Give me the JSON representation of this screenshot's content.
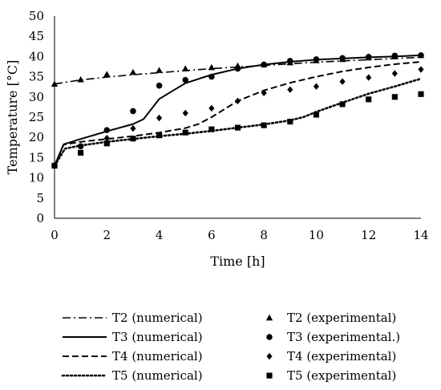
{
  "chart_data": {
    "type": "line",
    "xlabel": "Time [h]",
    "ylabel": "Temperature [°C]",
    "xlim": [
      0,
      14
    ],
    "ylim": [
      0,
      50
    ],
    "xticks": [
      0,
      2,
      4,
      6,
      8,
      10,
      12,
      14
    ],
    "yticks": [
      0,
      5,
      10,
      15,
      20,
      25,
      30,
      35,
      40,
      45,
      50
    ],
    "grid": false,
    "legend_position": "bottom",
    "series": [
      {
        "name": "T2 (numerical)",
        "kind": "line",
        "style": "dashdot",
        "x": [
          0,
          1,
          2,
          3,
          4,
          5,
          6,
          7,
          8,
          9,
          10,
          11,
          12,
          13,
          14
        ],
        "y": [
          33.2,
          34.2,
          34.9,
          35.5,
          36.0,
          36.5,
          37.0,
          37.4,
          37.8,
          38.2,
          38.6,
          38.9,
          39.2,
          39.5,
          39.8
        ]
      },
      {
        "name": "T3 (numerical)",
        "kind": "line",
        "style": "solid",
        "x": [
          0,
          0.35,
          1,
          2,
          3,
          3.4,
          4,
          5,
          6,
          7,
          8,
          9,
          10,
          11,
          12,
          13,
          14
        ],
        "y": [
          13.0,
          18.3,
          19.6,
          21.5,
          23.3,
          24.5,
          29.5,
          33.4,
          35.5,
          37.0,
          38.0,
          38.7,
          39.2,
          39.5,
          39.8,
          40.0,
          40.3
        ]
      },
      {
        "name": "T4 (numerical)",
        "kind": "line",
        "style": "dashed",
        "x": [
          0,
          0.35,
          1,
          2,
          3,
          4,
          5,
          5.5,
          6,
          6.5,
          7,
          8,
          9,
          10,
          11,
          12,
          13,
          14
        ],
        "y": [
          13.0,
          18.2,
          18.9,
          19.6,
          20.3,
          21.2,
          22.3,
          23.3,
          25.0,
          27.0,
          29.0,
          31.6,
          33.5,
          35.0,
          36.3,
          37.3,
          38.1,
          38.7
        ]
      },
      {
        "name": "T5 (numerical)",
        "kind": "line",
        "style": "dotted",
        "x": [
          0,
          0.4,
          1,
          2,
          3,
          4,
          5,
          6,
          7,
          8,
          9,
          9.5,
          10,
          11,
          12,
          13,
          14
        ],
        "y": [
          13.0,
          17.2,
          18.0,
          18.9,
          19.6,
          20.3,
          20.9,
          21.6,
          22.4,
          23.2,
          24.2,
          25.0,
          26.3,
          28.6,
          30.8,
          32.6,
          34.5
        ]
      },
      {
        "name": "T2 (experimental)",
        "kind": "marker",
        "marker": "triangle",
        "x": [
          0,
          1,
          2,
          3,
          4,
          5,
          6,
          7,
          8,
          9,
          10,
          11,
          12,
          13,
          14
        ],
        "y": [
          33.2,
          34.3,
          35.6,
          36.1,
          36.6,
          37.0,
          37.3,
          37.7,
          38.0,
          38.5,
          39.0,
          39.3,
          39.7,
          40.0,
          40.3
        ]
      },
      {
        "name": "T3 (experimental.)",
        "kind": "marker",
        "marker": "circle",
        "x": [
          0,
          1,
          2,
          3,
          4,
          5,
          6,
          7,
          8,
          9,
          10,
          11,
          12,
          13,
          14
        ],
        "y": [
          13.0,
          17.8,
          21.8,
          26.5,
          32.8,
          34.2,
          35.0,
          37.0,
          38.0,
          38.9,
          39.3,
          39.6,
          39.9,
          40.2,
          40.3
        ]
      },
      {
        "name": "T4 (experimental)",
        "kind": "marker",
        "marker": "diamond",
        "x": [
          0,
          1,
          2,
          3,
          4,
          5,
          6,
          7,
          8,
          9,
          10,
          11,
          12,
          13,
          14
        ],
        "y": [
          13.0,
          17.8,
          19.8,
          22.2,
          24.8,
          26.0,
          27.2,
          29.0,
          31.0,
          31.8,
          32.6,
          33.8,
          34.8,
          35.8,
          36.8
        ]
      },
      {
        "name": "T5 (experimental)",
        "kind": "marker",
        "marker": "square",
        "x": [
          0,
          1,
          2,
          3,
          4,
          5,
          6,
          7,
          8,
          9,
          10,
          11,
          12,
          13,
          14
        ],
        "y": [
          13.0,
          16.2,
          18.5,
          19.7,
          20.5,
          21.2,
          22.0,
          22.4,
          23.0,
          23.9,
          25.6,
          28.2,
          29.4,
          30.0,
          30.7
        ]
      }
    ],
    "legend": [
      {
        "label": "T2 (numerical)",
        "series": 0
      },
      {
        "label": "T2 (experimental)",
        "series": 4
      },
      {
        "label": "T3 (numerical)",
        "series": 1
      },
      {
        "label": "T3 (experimental.)",
        "series": 5
      },
      {
        "label": "T4 (numerical)",
        "series": 2
      },
      {
        "label": "T4 (experimental)",
        "series": 6
      },
      {
        "label": "T5 (numerical)",
        "series": 3
      },
      {
        "label": "T5 (experimental)",
        "series": 7
      }
    ]
  }
}
